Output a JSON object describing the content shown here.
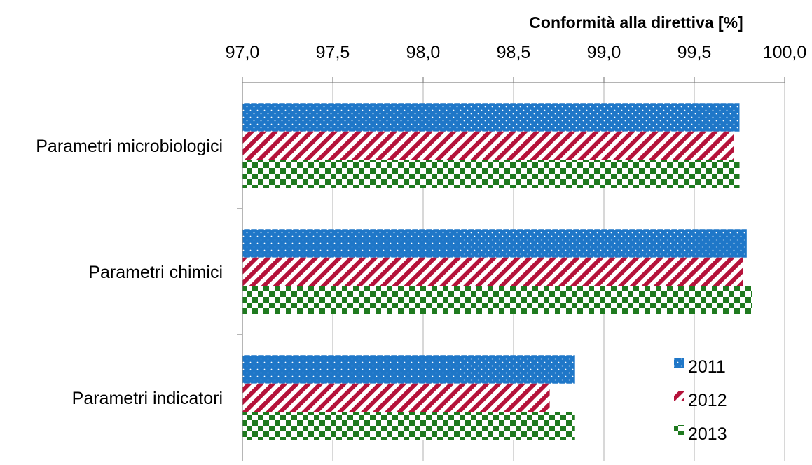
{
  "chart_data": {
    "type": "bar",
    "orientation": "horizontal",
    "title": "",
    "xlabel": "Conformità alla direttiva [%]",
    "ylabel": "",
    "xaxis_position": "top",
    "xlim": [
      97.0,
      100.0
    ],
    "xticks": [
      "97,0",
      "97,5",
      "98,0",
      "98,5",
      "99,0",
      "99,5",
      "100,0"
    ],
    "xtick_values": [
      97.0,
      97.5,
      98.0,
      98.5,
      99.0,
      99.5,
      100.0
    ],
    "grid": true,
    "legend_position": "bottom-right",
    "categories": [
      "Parametri microbiologici",
      "Parametri chimici",
      "Parametri indicatori"
    ],
    "series": [
      {
        "name": "2011",
        "color": "#1F77C8",
        "pattern": "dots",
        "values": [
          99.75,
          99.79,
          98.84
        ]
      },
      {
        "name": "2012",
        "color": "#B5123A",
        "pattern": "diagonal-stripes",
        "values": [
          99.72,
          99.77,
          98.7
        ]
      },
      {
        "name": "2013",
        "color": "#1F7A1F",
        "pattern": "checkerboard",
        "values": [
          99.75,
          99.82,
          98.84
        ]
      }
    ]
  }
}
